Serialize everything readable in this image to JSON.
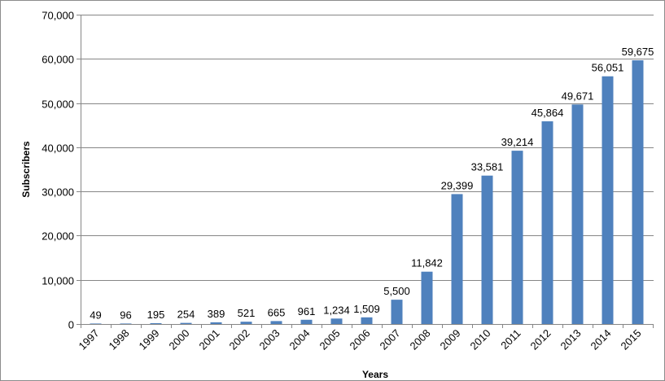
{
  "chart_data": {
    "type": "bar",
    "title": "",
    "xlabel": "Years",
    "ylabel": "Subscribers",
    "categories": [
      "1997",
      "1998",
      "1999",
      "2000",
      "2001",
      "2002",
      "2003",
      "2004",
      "2005",
      "2006",
      "2007",
      "2008",
      "2009",
      "2010",
      "2011",
      "2012",
      "2013",
      "2014",
      "2015"
    ],
    "values": [
      49,
      96,
      195,
      254,
      389,
      521,
      665,
      961,
      1234,
      1509,
      5500,
      11842,
      29399,
      33581,
      39214,
      45864,
      49671,
      56051,
      59675
    ],
    "data_labels": [
      "49",
      "96",
      "195",
      "254",
      "389",
      "521",
      "665",
      "961",
      "1,234",
      "1,509",
      "5,500",
      "11,842",
      "29,399",
      "33,581",
      "39,214",
      "45,864",
      "49,671",
      "56,051",
      "59,675"
    ],
    "y_ticks": [
      0,
      10000,
      20000,
      30000,
      40000,
      50000,
      60000,
      70000
    ],
    "y_tick_labels": [
      "0",
      "10,000",
      "20,000",
      "30,000",
      "40,000",
      "50,000",
      "60,000",
      "70,000"
    ],
    "ylim": [
      0,
      70000
    ],
    "grid": true,
    "legend": "none",
    "colors": {
      "bar": "#4f81bd",
      "grid": "#868686",
      "axis": "#868686"
    }
  }
}
